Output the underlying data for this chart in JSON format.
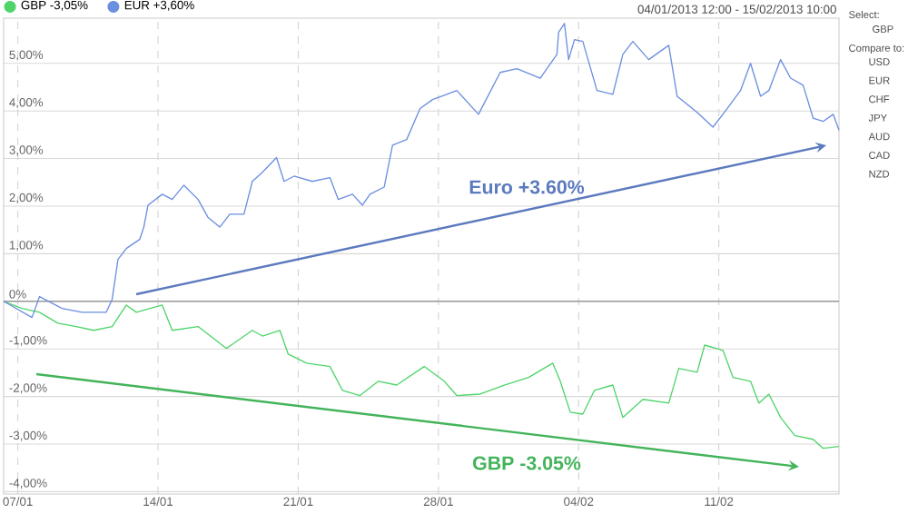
{
  "chart_data": {
    "type": "line",
    "grid": true,
    "legend": "top left",
    "xlim": [
      "2013-01-06T07:00",
      "2013-02-17T00:00"
    ],
    "ylim": [
      -4.05,
      5.95
    ],
    "xticks": [
      {
        "value": "2013-01-07",
        "label": "07/01"
      },
      {
        "value": "2013-01-14",
        "label": "14/01"
      },
      {
        "value": "2013-01-21",
        "label": "21/01"
      },
      {
        "value": "2013-01-28",
        "label": "28/01"
      },
      {
        "value": "2013-02-04",
        "label": "04/02"
      },
      {
        "value": "2013-02-11",
        "label": "11/02"
      }
    ],
    "yticks": [
      {
        "value": -4,
        "label": "-4,00%"
      },
      {
        "value": -3,
        "label": "-3,00%"
      },
      {
        "value": -2,
        "label": "-2,00%"
      },
      {
        "value": -1,
        "label": "-1,00%"
      },
      {
        "value": 0,
        "label": "0%"
      },
      {
        "value": 1,
        "label": "1,00%"
      },
      {
        "value": 2,
        "label": "2,00%"
      },
      {
        "value": 3,
        "label": "3,00%"
      },
      {
        "value": 4,
        "label": "4,00%"
      },
      {
        "value": 5,
        "label": "5,00%"
      }
    ],
    "ref_lines": [
      {
        "axis": "y",
        "value": 0,
        "color": "#999999"
      }
    ],
    "series": [
      {
        "name": "GBP -3,05%",
        "color": "#4fd46a",
        "x": [
          "2013-01-06T07:00",
          "2013-01-07T05:00",
          "2013-01-08T02:00",
          "2013-01-09T00:00",
          "2013-01-09T22:00",
          "2013-01-10T19:00",
          "2013-01-11T17:00",
          "2013-01-12T10:00",
          "2013-01-12T22:00",
          "2013-01-14T05:00",
          "2013-01-14T17:00",
          "2013-01-16T00:00",
          "2013-01-17T10:00",
          "2013-01-18T17:00",
          "2013-01-19T05:00",
          "2013-01-20T02:00",
          "2013-01-20T12:00",
          "2013-01-21T10:00",
          "2013-01-22T14:00",
          "2013-01-23T05:00",
          "2013-01-24T02:00",
          "2013-01-25T00:00",
          "2013-01-25T22:00",
          "2013-01-27T07:00",
          "2013-01-28T07:00",
          "2013-01-28T22:00",
          "2013-01-30T02:00",
          "2013-01-31T07:00",
          "2013-02-01T12:00",
          "2013-02-02T17:00",
          "2013-02-03T02:00",
          "2013-02-03T14:00",
          "2013-02-04T05:00",
          "2013-02-04T19:00",
          "2013-02-05T17:00",
          "2013-02-06T05:00",
          "2013-02-07T05:00",
          "2013-02-08T12:00",
          "2013-02-09T00:00",
          "2013-02-09T22:00",
          "2013-02-10T07:00",
          "2013-02-11T05:00",
          "2013-02-11T17:00",
          "2013-02-12T14:00",
          "2013-02-13T00:00",
          "2013-02-13T12:00",
          "2013-02-14T02:00",
          "2013-02-14T19:00",
          "2013-02-15T17:00",
          "2013-02-16T05:00",
          "2013-02-17T00:00"
        ],
        "values": [
          0,
          -0.15,
          -0.23,
          -0.46,
          -0.53,
          -0.61,
          -0.53,
          -0.08,
          -0.23,
          -0.08,
          -0.61,
          -0.53,
          -0.99,
          -0.61,
          -0.73,
          -0.61,
          -1.11,
          -1.3,
          -1.37,
          -1.87,
          -1.98,
          -1.68,
          -1.76,
          -1.37,
          -1.68,
          -1.98,
          -1.95,
          -1.76,
          -1.6,
          -1.3,
          -1.68,
          -2.33,
          -2.37,
          -1.87,
          -1.76,
          -2.44,
          -2.06,
          -2.14,
          -1.41,
          -1.49,
          -0.92,
          -1.03,
          -1.6,
          -1.68,
          -2.14,
          -1.95,
          -2.44,
          -2.82,
          -2.9,
          -3.09,
          -3.05
        ]
      },
      {
        "name": "EUR +3,60%",
        "color": "#6b8fe0",
        "x": [
          "2013-01-06T07:00",
          "2013-01-07T17:00",
          "2013-01-08T02:00",
          "2013-01-09T05:00",
          "2013-01-10T05:00",
          "2013-01-11T10:00",
          "2013-01-11T17:00",
          "2013-01-12T00:00",
          "2013-01-12T10:00",
          "2013-01-13T02:00",
          "2013-01-13T07:00",
          "2013-01-13T12:00",
          "2013-01-14T05:00",
          "2013-01-14T17:00",
          "2013-01-15T07:00",
          "2013-01-16T00:00",
          "2013-01-16T12:00",
          "2013-01-17T02:00",
          "2013-01-17T14:00",
          "2013-01-18T07:00",
          "2013-01-18T17:00",
          "2013-01-19T05:00",
          "2013-01-19T22:00",
          "2013-01-20T07:00",
          "2013-01-20T19:00",
          "2013-01-21T17:00",
          "2013-01-22T14:00",
          "2013-01-23T00:00",
          "2013-01-23T17:00",
          "2013-01-24T05:00",
          "2013-01-24T14:00",
          "2013-01-25T07:00",
          "2013-01-25T17:00",
          "2013-01-26T10:00",
          "2013-01-27T02:00",
          "2013-01-27T17:00",
          "2013-01-28T10:00",
          "2013-01-28T22:00",
          "2013-01-30T00:00",
          "2013-01-31T02:00",
          "2013-01-31T22:00",
          "2013-02-02T02:00",
          "2013-02-02T22:00",
          "2013-02-03T00:00",
          "2013-02-03T07:00",
          "2013-02-03T12:00",
          "2013-02-03T19:00",
          "2013-02-04T05:00",
          "2013-02-04T22:00",
          "2013-02-05T17:00",
          "2013-02-06T05:00",
          "2013-02-06T17:00",
          "2013-02-07T12:00",
          "2013-02-08T12:00",
          "2013-02-08T22:00",
          "2013-02-09T22:00",
          "2013-02-10T17:00",
          "2013-02-11T10:00",
          "2013-02-12T02:00",
          "2013-02-12T14:00",
          "2013-02-13T02:00",
          "2013-02-13T12:00",
          "2013-02-14T02:00",
          "2013-02-14T14:00",
          "2013-02-15T05:00",
          "2013-02-15T17:00",
          "2013-02-16T05:00",
          "2013-02-16T17:00",
          "2013-02-17T00:00"
        ],
        "values": [
          0,
          -0.34,
          0.1,
          -0.15,
          -0.23,
          -0.23,
          0.04,
          0.88,
          1.11,
          1.3,
          1.56,
          2.02,
          2.25,
          2.14,
          2.44,
          2.14,
          1.76,
          1.56,
          1.83,
          1.83,
          2.52,
          2.71,
          3.02,
          2.52,
          2.63,
          2.52,
          2.6,
          2.14,
          2.25,
          2.02,
          2.25,
          2.4,
          3.28,
          3.4,
          4.05,
          4.24,
          4.35,
          4.43,
          3.93,
          4.81,
          4.89,
          4.69,
          5.19,
          5.65,
          5.84,
          5.08,
          5.5,
          5.46,
          4.43,
          4.35,
          5.19,
          5.46,
          5.08,
          5.38,
          4.31,
          3.97,
          3.66,
          4.05,
          4.43,
          5.0,
          4.31,
          4.43,
          5.08,
          4.69,
          4.54,
          3.85,
          3.78,
          3.93,
          3.6
        ]
      }
    ],
    "annotations": [
      "Euro +3.60%",
      "GBP -3.05%",
      "04/01/2013 12:00 - 15/02/2013 10:00",
      "Select:",
      "GBP",
      "Compare to:",
      "USD",
      "EUR",
      "CHF",
      "JPY",
      "AUD",
      "CAD",
      "NZD"
    ]
  }
}
